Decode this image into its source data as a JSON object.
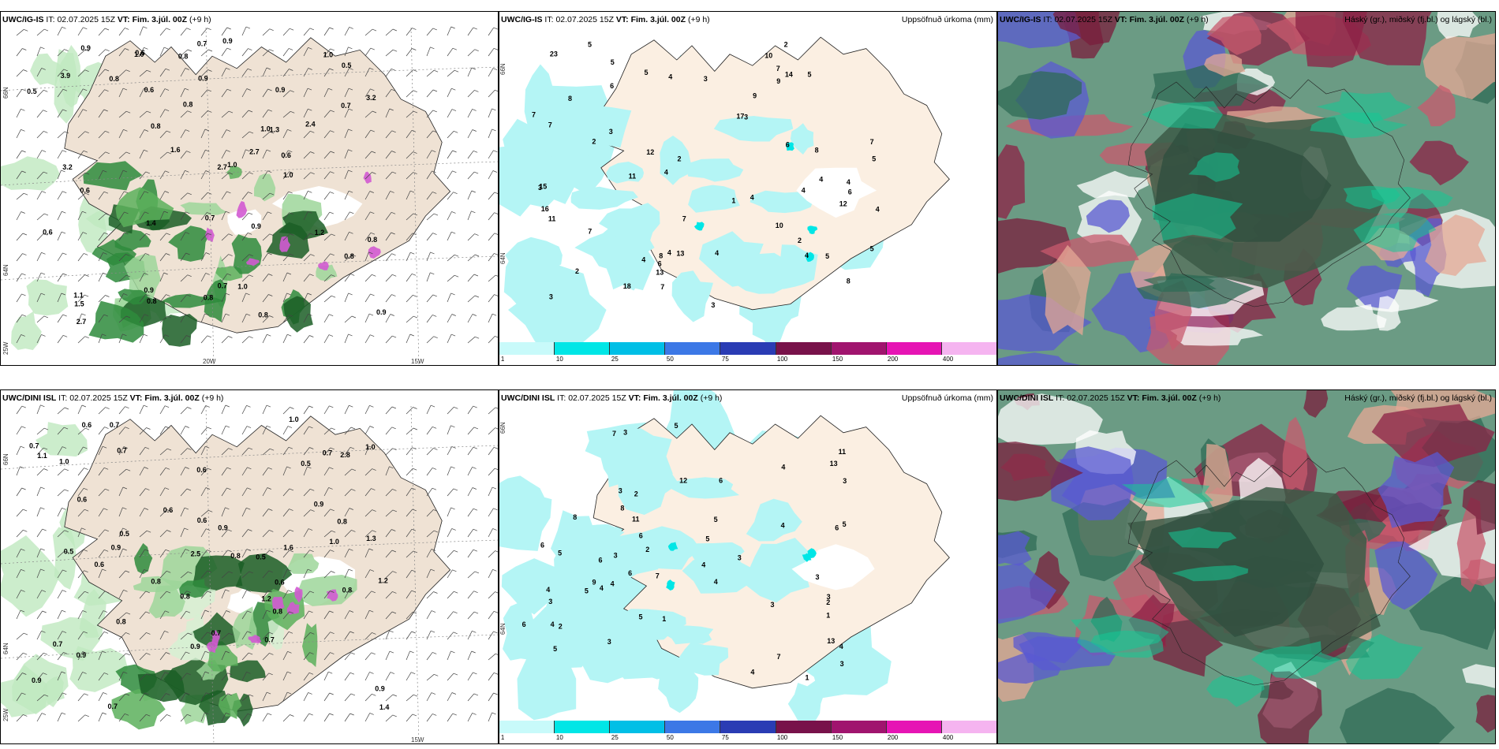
{
  "panels": {
    "p1": {
      "model": "UWC/IG-IS",
      "it_label": "IT:",
      "it_value": "02.07.2025 15Z",
      "vt_label": "VT:",
      "vt_value": "Fim. 3.júl. 00Z",
      "lead": "(+9 h)",
      "lat_labels": [
        "66N",
        "64N",
        "25W"
      ],
      "lon_labels": [
        "20W",
        "15W"
      ]
    },
    "p2": {
      "model": "UWC/IG-IS",
      "it_label": "IT:",
      "it_value": "02.07.2025 15Z",
      "vt_label": "VT:",
      "vt_value": "Fim. 3.júl. 00Z",
      "lead": "(+9 h)",
      "right_title": "Uppsöfnuð úrkoma (mm)",
      "lat_labels": [
        "66N",
        "64N"
      ]
    },
    "p3": {
      "model": "UWC/IG-IS",
      "it_label": "IT:",
      "it_value": "02.07.2025 15Z",
      "vt_label": "VT:",
      "vt_value": "Fim. 3.júl. 00Z",
      "lead": "(+9 h)",
      "right_title": "Háský (gr.), miðský (fj.bl.) og lágský (bl.)"
    },
    "p4": {
      "model": "UWC/DINI ISL",
      "it_label": "IT:",
      "it_value": "02.07.2025 15Z",
      "vt_label": "VT:",
      "vt_value": "Fim. 3.júl. 00Z",
      "lead": "(+9 h)",
      "lat_labels": [
        "66N",
        "64N",
        "25W"
      ],
      "lon_labels": [
        "15W"
      ]
    },
    "p5": {
      "model": "UWC/DINI ISL",
      "it_label": "IT:",
      "it_value": "02.07.2025 15Z",
      "vt_label": "VT:",
      "vt_value": "Fim. 3.júl. 00Z",
      "lead": "(+9 h)",
      "right_title": "Uppsöfnuð úrkoma (mm)",
      "lat_labels": [
        "66N",
        "64N"
      ]
    },
    "p6": {
      "model": "UWC/DINI ISL",
      "it_label": "IT:",
      "it_value": "02.07.2025 15Z",
      "vt_label": "VT:",
      "vt_value": "Fim. 3.júl. 00Z",
      "lead": "(+9 h)",
      "right_title": "Háský (gr.), miðský (fj.bl.) og lágský (bl.)"
    }
  },
  "colorbar": {
    "ticks": [
      "1",
      "10",
      "25",
      "50",
      "75",
      "100",
      "150",
      "200",
      "400"
    ],
    "colors": [
      "#c8fafa",
      "#00e6e6",
      "#00bfe6",
      "#3c78e6",
      "#2a3cb4",
      "#78124a",
      "#a0146e",
      "#e614b4",
      "#f5b4f0"
    ]
  },
  "colors": {
    "land": "#efe2d4",
    "precip_light": "#b4f5f5",
    "green": "#2e8b3c",
    "cloud_high": "#3c5a46",
    "cloud_mid": "#8c1e3c",
    "cloud_low": "#5a5ad2"
  },
  "map_labels": {
    "p1": [
      "0.8",
      "0.7",
      "0.6",
      "0.7",
      "0.8",
      "1.0",
      "0.9",
      "0.5",
      "0.7",
      "0.9",
      "0.9",
      "0.6",
      "1.0",
      "0.8",
      "0.9",
      "1.0",
      "0.8",
      "2.4",
      "1.3",
      "0.9",
      "0.6",
      "0.8",
      "0.9",
      "1.0",
      "0.8",
      "1.0",
      "0.9",
      "0.8",
      "0.6",
      "1.2",
      "3.2",
      "0.6",
      "1.6",
      "2.7",
      "2.7",
      "3.2",
      "2.7",
      "3.9",
      "0.8",
      "0.7",
      "0.5",
      "1.1",
      "1.0",
      "1.4",
      "1.5",
      "0.8"
    ],
    "p2": [
      "3",
      "2",
      "4",
      "5",
      "2",
      "4",
      "3",
      "2",
      "3",
      "5",
      "4",
      "4",
      "3",
      "4",
      "6",
      "7",
      "8",
      "3",
      "4",
      "5",
      "8",
      "7",
      "5",
      "4",
      "6",
      "5",
      "12",
      "11",
      "7",
      "4",
      "10",
      "7",
      "8",
      "9",
      "7",
      "13",
      "14",
      "15",
      "17",
      "7",
      "5",
      "9",
      "23",
      "6",
      "8",
      "11",
      "16",
      "10",
      "4",
      "2",
      "7",
      "13",
      "12",
      "18",
      "5",
      "4",
      "2",
      "4",
      "6",
      "3",
      "1"
    ],
    "p4": [
      "0.8",
      "0.6",
      "0.7",
      "0.5",
      "1.0",
      "0.7",
      "1.1",
      "0.9",
      "0.8",
      "1.0",
      "1.3",
      "0.8",
      "0.5",
      "0.8",
      "0.6",
      "0.9",
      "0.7",
      "2.8",
      "0.6",
      "0.8",
      "0.5",
      "0.6",
      "0.8",
      "1.0",
      "0.9",
      "0.7",
      "1.2",
      "2.5",
      "1.2",
      "0.7",
      "0.5",
      "0.6",
      "0.9",
      "0.7",
      "0.6",
      "0.9",
      "0.6",
      "0.8",
      "0.7",
      "0.9",
      "1.6",
      "0.9",
      "0.7",
      "1.4",
      "1.0"
    ],
    "p5": [
      "1",
      "1",
      "2",
      "5",
      "3",
      "5",
      "6",
      "4",
      "3",
      "4",
      "5",
      "3",
      "3",
      "4",
      "3",
      "6",
      "3",
      "4",
      "5",
      "7",
      "9",
      "8",
      "6",
      "11",
      "5",
      "4",
      "6",
      "4",
      "3",
      "4",
      "5",
      "2",
      "4",
      "3",
      "6",
      "11",
      "13",
      "3",
      "4",
      "5",
      "3",
      "2",
      "6",
      "8",
      "7",
      "5",
      "6",
      "13",
      "12",
      "3",
      "4",
      "2",
      "7",
      "1"
    ]
  }
}
